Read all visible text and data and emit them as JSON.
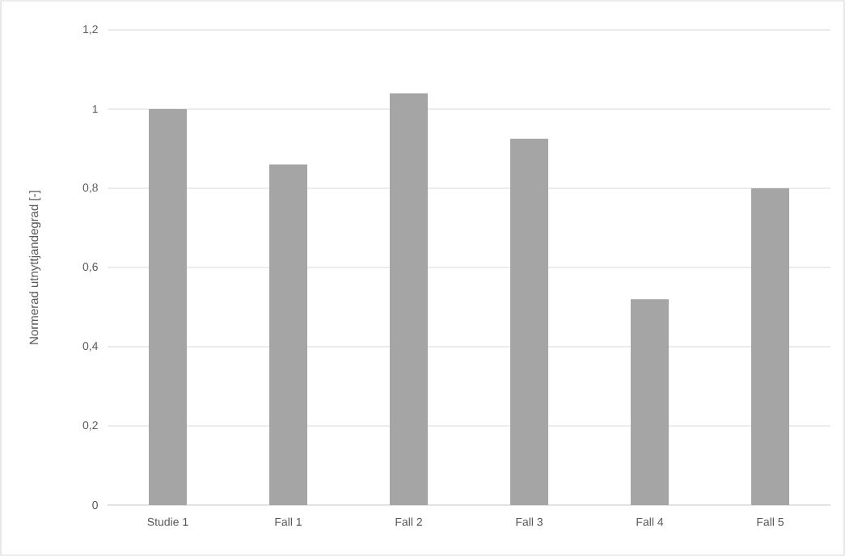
{
  "chart_data": {
    "type": "bar",
    "ylabel": "Normerad utnyttjandegrad [-]",
    "categories": [
      "Studie 1",
      "Fall 1",
      "Fall 2",
      "Fall 3",
      "Fall 4",
      "Fall 5"
    ],
    "values": [
      1.0,
      0.86,
      1.04,
      0.925,
      0.52,
      0.8
    ],
    "color": "#a5a5a5",
    "ylim": [
      0,
      1.2
    ],
    "yticks": [
      0,
      {
        "value": 0.2,
        "label": "0,2"
      },
      {
        "value": 0.4,
        "label": "0,4"
      },
      {
        "value": 0.6,
        "label": "0,6"
      },
      {
        "value": 0.8,
        "label": "0,8"
      },
      1,
      {
        "value": 1.2,
        "label": "1,2"
      }
    ],
    "grid": "y"
  }
}
